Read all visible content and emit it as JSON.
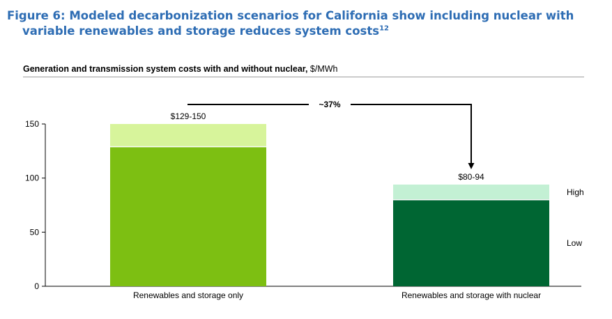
{
  "figure": {
    "title_line1": "Figure 6: Modeled decarbonization scenarios for California show including nuclear with",
    "title_line2": "variable renewables and storage reduces system costs",
    "title_superscript": "12"
  },
  "chart_data": {
    "type": "bar",
    "title_bold": "Generation and transmission system costs with and without nuclear,",
    "title_unit": " $/MWh",
    "categories": [
      "Renewables and storage only",
      "Renewables and storage with nuclear"
    ],
    "series": [
      {
        "name": "Low",
        "values": [
          129,
          80
        ]
      },
      {
        "name": "High",
        "values": [
          150,
          94
        ]
      }
    ],
    "bar_labels": [
      "$129-150",
      "$80-94"
    ],
    "yticks": [
      0,
      50,
      100,
      150
    ],
    "ylim": [
      0,
      150
    ],
    "grid": false,
    "annotation": {
      "text": "~37%"
    },
    "colors": {
      "low": [
        "#7dbf12",
        "#006633"
      ],
      "high": [
        "#d7f49b",
        "#c3f0d4"
      ],
      "title": "#2e6db4",
      "axis": "#000000"
    }
  }
}
